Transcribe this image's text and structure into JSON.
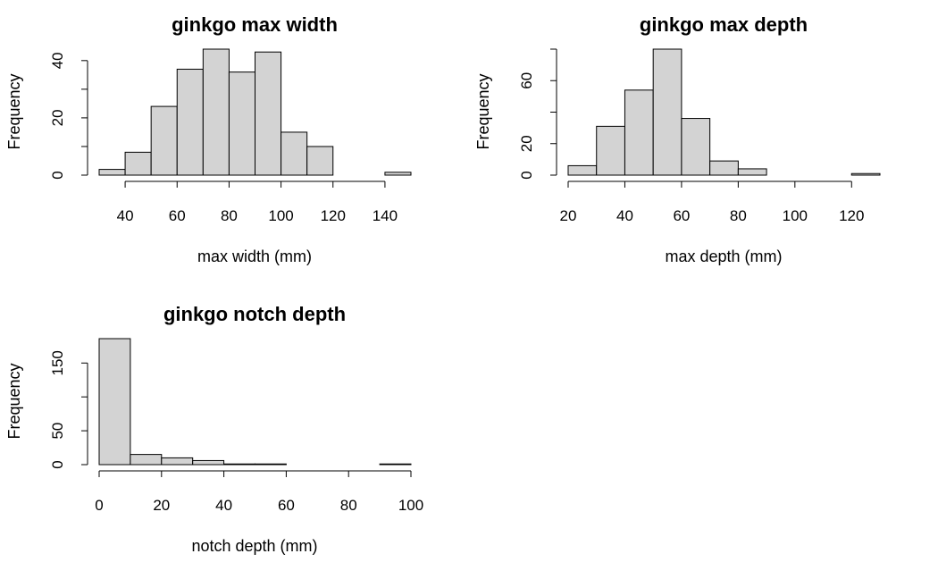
{
  "chart_data": [
    {
      "type": "bar",
      "title": "ginkgo max width",
      "xlabel": "max width (mm)",
      "ylabel": "Frequency",
      "bin_edges": [
        30,
        40,
        50,
        60,
        70,
        80,
        90,
        100,
        110,
        120,
        130,
        140,
        150
      ],
      "values": [
        2,
        8,
        24,
        37,
        44,
        36,
        43,
        15,
        10,
        0,
        0,
        1
      ],
      "x_ticks": [
        40,
        60,
        80,
        100,
        120,
        140
      ],
      "y_ticks": [
        0,
        20,
        40
      ],
      "y_minor_ticks": [
        10,
        30
      ],
      "ylim": [
        0,
        44
      ],
      "bar_color": "#d3d3d3"
    },
    {
      "type": "bar",
      "title": "ginkgo max depth",
      "xlabel": "max depth (mm)",
      "ylabel": "Frequency",
      "bin_edges": [
        20,
        30,
        40,
        50,
        60,
        70,
        80,
        90,
        100,
        110,
        120,
        130
      ],
      "values": [
        6,
        31,
        54,
        80,
        36,
        9,
        4,
        0,
        0,
        0,
        1
      ],
      "x_ticks": [
        20,
        40,
        60,
        80,
        100,
        120
      ],
      "y_ticks": [
        0,
        20,
        60
      ],
      "y_minor_ticks": [
        40,
        80
      ],
      "ylim": [
        0,
        80
      ],
      "bar_color": "#d3d3d3"
    },
    {
      "type": "bar",
      "title": "ginkgo notch depth",
      "xlabel": "notch depth (mm)",
      "ylabel": "Frequency",
      "bin_edges": [
        0,
        10,
        20,
        30,
        40,
        50,
        60,
        70,
        80,
        90,
        100
      ],
      "values": [
        186,
        15,
        10,
        6,
        1,
        1,
        0,
        0,
        0,
        1
      ],
      "x_ticks": [
        0,
        20,
        40,
        60,
        80,
        100
      ],
      "y_ticks": [
        0,
        50,
        150
      ],
      "y_minor_ticks": [
        100
      ],
      "ylim": [
        0,
        186
      ],
      "bar_color": "#d3d3d3"
    }
  ]
}
